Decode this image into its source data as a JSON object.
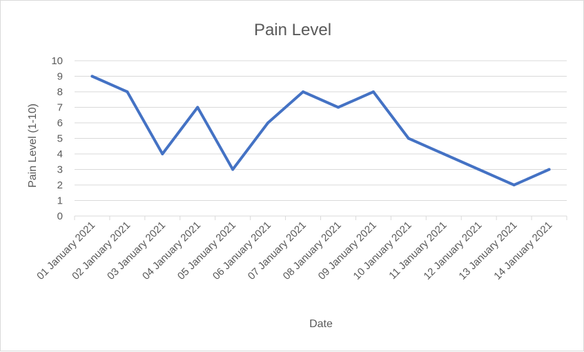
{
  "chart_data": {
    "type": "line",
    "title": "Pain Level",
    "xlabel": "Date",
    "ylabel": "Pain Level (1-10)",
    "categories": [
      "01 January 2021",
      "02 January 2021",
      "03 January 2021",
      "04 January 2021",
      "05 January 2021",
      "06 January 2021",
      "07 January 2021",
      "08 January 2021",
      "09 January 2021",
      "10 January 2021",
      "11 January 2021",
      "12 January 2021",
      "13 January 2021",
      "14 January 2021"
    ],
    "series": [
      {
        "values": [
          9,
          8,
          4,
          7,
          3,
          6,
          8,
          7,
          8,
          5,
          4,
          3,
          2,
          3
        ],
        "color": "#4472c4"
      }
    ],
    "ylim": [
      0,
      10
    ],
    "yticks": [
      "0",
      "1",
      "2",
      "3",
      "4",
      "5",
      "6",
      "7",
      "8",
      "9",
      "10"
    ],
    "grid": true,
    "legend": "none"
  }
}
